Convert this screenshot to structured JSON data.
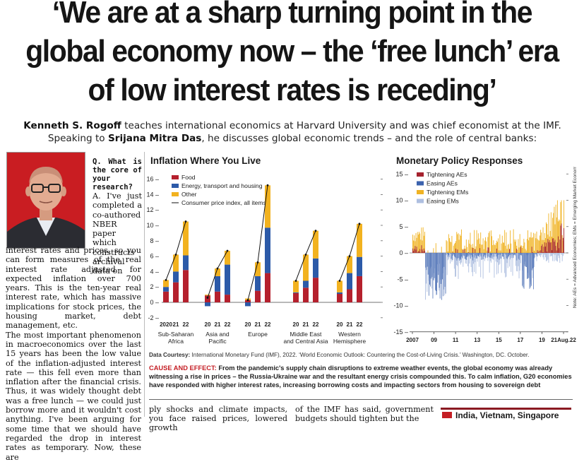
{
  "headline": {
    "line1": "‘We are at a sharp turning point in the",
    "line2": "global economy now – the ‘free lunch’ era",
    "line3": "of low interest rates is receding’"
  },
  "standfirst": {
    "name1": "Kenneth S. Rogoff",
    "text1": " teaches international economics at Harvard University and was chief economist at the IMF.",
    "text2": "Speaking to ",
    "name2": "Srijana Mitra Das",
    "text3": ", he discusses global economic trends – and the role of central banks:"
  },
  "interview": {
    "question": "Q. What is the core of your research?",
    "answer_start": "A. I've just completed a co-authored NBER paper which constructs archival data on",
    "answer_cont": "interest rates and prices, so you can form measures of the real interest rate adjusted for expected inflation over 700 years. This is the ten-year real interest rate, which has massive implications for stock prices, the housing market, debt management, etc.",
    "para2": "The most important phenomenon in macroeconomics over the last 15 years has been the low value of the inflation-adjusted interest rate — this fell even more than inflation after the financial crisis. Thus, it was widely thought debt was a free lunch — we could just borrow more and it wouldn't cost anything. I've been arguing for some time that we should have regarded the drop in interest rates as temporary. Now, these are"
  },
  "bottom": {
    "col2": "ply shocks and climate impacts, you face raised prices, lowered growth",
    "col3": "of the IMF has said, government budgets should tighten but the",
    "box": "India, Vietnam, Singapore"
  },
  "courtesy": {
    "label": "Data Courtesy:",
    "text": " International Monetary Fund (IMF), 2022. ‘World Economic Outlook: Countering the Cost-of-Living Crisis.’ Washington, DC. October."
  },
  "caption": {
    "label": "CAUSE AND EFFECT:",
    "text": " From the pandemic's supply chain disruptions to extreme weather events, the global economy was already witnessing a rise in prices – the Russia-Ukraine war and the resultant energy crisis compounded this. To calm inflation, G20 economies have responded with higher interest rates, increasing borrowing costs and impacting sectors from housing to sovereign debt"
  },
  "colors": {
    "food": "#b5202d",
    "energy": "#2c5aa8",
    "other": "#f2b21f",
    "tightening_ae": "#a5222e",
    "easing_ae": "#3b62ad",
    "tightening_em": "#f0b323",
    "easing_em": "#aebfe0"
  },
  "chart_data": [
    {
      "type": "bar",
      "stacked": true,
      "title": "Inflation Where You Live",
      "ylim": [
        -2,
        16
      ],
      "yticks": [
        -2,
        0,
        2,
        4,
        6,
        8,
        10,
        12,
        14,
        16
      ],
      "legend": [
        "Food",
        "Energy, transport and housing",
        "Other",
        "Consumer price index, all items"
      ],
      "groups": [
        {
          "name": "Sub-Saharan Africa",
          "years": [
            "2020",
            "21",
            "22"
          ],
          "food": [
            1.4,
            2.6,
            4.2
          ],
          "energy": [
            0.6,
            1.4,
            1.9
          ],
          "other": [
            0.9,
            2.2,
            4.4
          ],
          "cpi": [
            2.9,
            6.2,
            10.5
          ]
        },
        {
          "name": "Asia and Pacific",
          "years": [
            "20",
            "21",
            "22"
          ],
          "food": [
            0.9,
            1.4,
            1.0
          ],
          "energy": [
            -0.5,
            2.0,
            3.9
          ],
          "other": [
            0.1,
            1.0,
            1.8
          ],
          "cpi": [
            0.6,
            4.4,
            6.7
          ]
        },
        {
          "name": "Europe",
          "years": [
            "20",
            "21",
            "22"
          ],
          "food": [
            0.3,
            1.5,
            3.8
          ],
          "energy": [
            -0.5,
            1.9,
            5.9
          ],
          "other": [
            0.2,
            1.8,
            5.5
          ],
          "cpi": [
            0.3,
            5.2,
            15.2
          ]
        },
        {
          "name": "Middle East and Central Asia",
          "years": [
            "20",
            "21",
            "22"
          ],
          "food": [
            1.2,
            1.9,
            3.2
          ],
          "energy": [
            0.1,
            0.9,
            2.5
          ],
          "other": [
            1.5,
            3.4,
            3.6
          ],
          "cpi": [
            2.8,
            6.2,
            9.3
          ]
        },
        {
          "name": "Western Hemisphere",
          "years": [
            "20",
            "21",
            "22"
          ],
          "food": [
            1.1,
            1.7,
            3.4
          ],
          "energy": [
            0.2,
            2.1,
            2.5
          ],
          "other": [
            1.5,
            2.2,
            4.3
          ],
          "cpi": [
            2.8,
            6.0,
            10.2
          ]
        }
      ]
    },
    {
      "type": "bar",
      "title": "Monetary Policy Responses",
      "ylim": [
        -15,
        15
      ],
      "yticks": [
        -15,
        -10,
        -5,
        0,
        5,
        10,
        15
      ],
      "xticks": [
        "2007",
        "09",
        "11",
        "13",
        "15",
        "17",
        "19",
        "21Aug.22"
      ],
      "legend": [
        "Tightening AEs",
        "Easing AEs",
        "Tightening EMs",
        "Easing EMs"
      ],
      "note": "Note: AEs = Advanced Economies; EMs = Emerging Market Economies"
    }
  ]
}
